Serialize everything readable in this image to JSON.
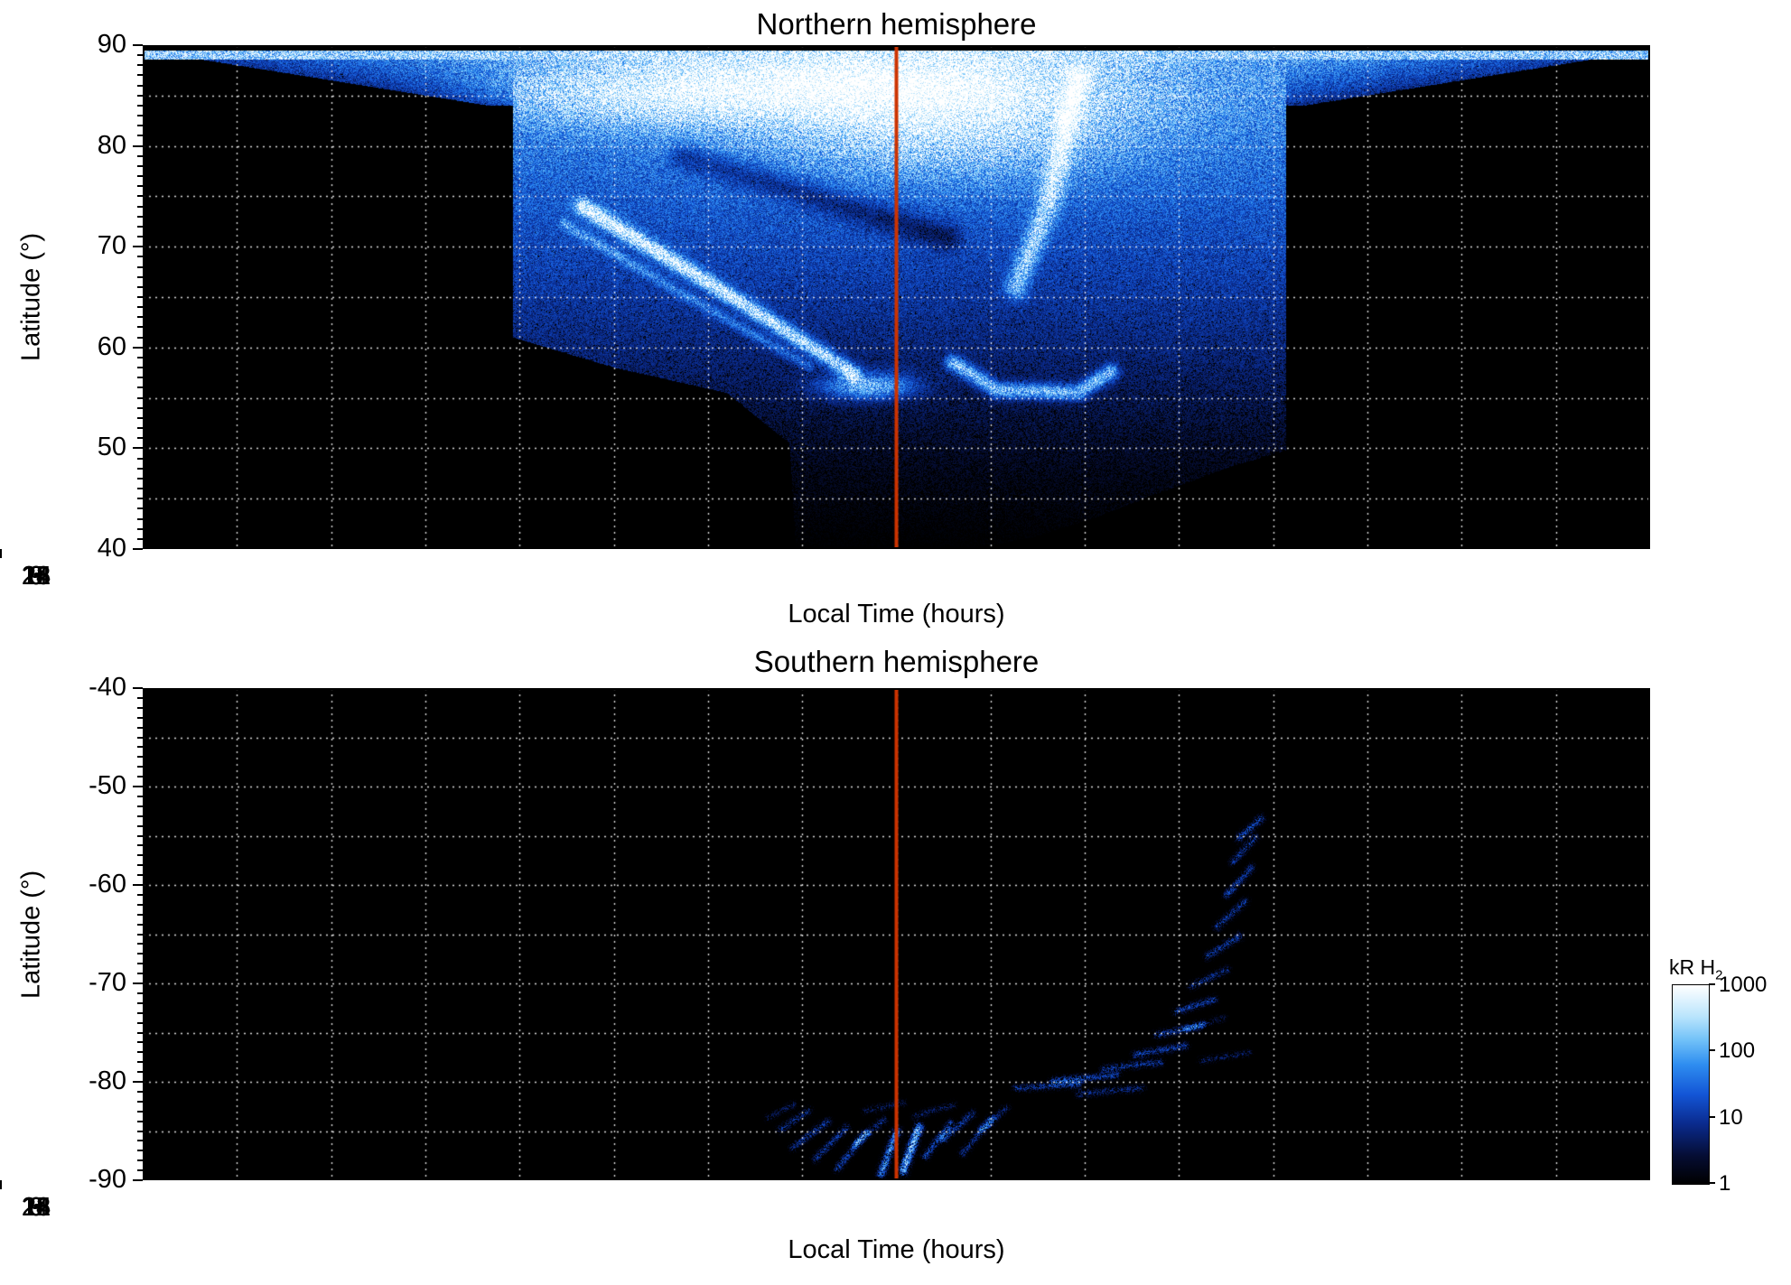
{
  "chart_data": [
    {
      "type": "heatmap",
      "title": "Northern hemisphere",
      "xlabel": "Local Time (hours)",
      "ylabel": "Latitude (°)",
      "xlim": [
        0,
        24
      ],
      "ylim": [
        40,
        90
      ],
      "xticks": [
        0,
        3,
        6,
        9,
        12,
        15,
        18,
        21,
        24
      ],
      "yticks": [
        90,
        80,
        70,
        60,
        50,
        40
      ],
      "grid": {
        "x_step": 1.5,
        "y_step": 5,
        "color": "#ffffff",
        "style": "dotted"
      },
      "annotations": [
        {
          "type": "vline",
          "x": 12,
          "color": "#cc3300",
          "width": 4
        }
      ],
      "units": "kR H2, log color scale 1-1000, black background = no emission",
      "intensity_model": {
        "seed": 7,
        "top_gap_lat": 89.5,
        "noise": {
          "mult_min": 0.62,
          "mult_range": 0.75,
          "dropout_v": 0.3,
          "dropout_k": 2.2
        },
        "ops": [
          {
            "op": "base",
            "t_min": 5.9,
            "t_max": 18.2,
            "bottom": [
              [
                5.9,
                61
              ],
              [
                7.5,
                58
              ],
              [
                9.3,
                55.5
              ],
              [
                10.3,
                50.5
              ],
              [
                10.4,
                40
              ],
              [
                13.2,
                40
              ],
              [
                14.2,
                41.2
              ],
              [
                15.2,
                43.2
              ],
              [
                16.2,
                45.6
              ],
              [
                17.2,
                47.9
              ],
              [
                18.2,
                49.8
              ]
            ],
            "lat0": 50,
            "v0": 0.14,
            "slope": 0.013,
            "vmax": 0.68
          },
          {
            "op": "wash",
            "lat_min": 84,
            "lat_max": 89.5,
            "lat_ref": 90,
            "center": 12,
            "half_at_min": 6.5,
            "half_at_max": 12.5,
            "v0": 0.6,
            "v_slope": 0.033,
            "edge_drop": 0.55
          },
          {
            "op": "band",
            "lat_min": 88.55,
            "lat_max": 89.5,
            "t_min": 0,
            "t_max": 24,
            "v": 0.78
          },
          {
            "op": "blob",
            "t": 12.8,
            "lat": 83,
            "st": 2.1,
            "sl": 4.2,
            "amp": 0.42,
            "masked": true
          },
          {
            "op": "blob",
            "t": 10.9,
            "lat": 86,
            "st": 2.6,
            "sl": 2.4,
            "amp": 0.32,
            "masked": true
          },
          {
            "op": "blob",
            "t": 8.2,
            "lat": 85,
            "st": 1.7,
            "sl": 2.2,
            "amp": 0.28,
            "masked": true
          },
          {
            "op": "arc",
            "pts": [
              [
                14.9,
                87
              ],
              [
                14.4,
                74
              ],
              [
                13.9,
                66
              ]
            ],
            "sigma": 0.8,
            "amp": 0.4,
            "masked": true
          },
          {
            "op": "arc",
            "pts": [
              [
                7.0,
                74
              ],
              [
                9.0,
                66.5
              ],
              [
                11.3,
                57.5
              ]
            ],
            "sigma": 0.55,
            "amp": 0.6,
            "masked": true
          },
          {
            "op": "arc",
            "pts": [
              [
                6.7,
                72.3
              ],
              [
                8.6,
                65.3
              ],
              [
                10.6,
                58.2
              ]
            ],
            "sigma": 0.38,
            "amp": 0.22,
            "masked": true
          },
          {
            "op": "blob",
            "t": 11.55,
            "lat": 56.2,
            "st": 0.5,
            "sl": 0.9,
            "amp": 0.5,
            "masked": true
          },
          {
            "op": "arc",
            "pts": [
              [
                12.9,
                58.5
              ],
              [
                13.6,
                55.8
              ],
              [
                14.9,
                55.6
              ],
              [
                15.4,
                57.6
              ]
            ],
            "sigma": 0.55,
            "amp": 0.5,
            "masked": true
          },
          {
            "op": "arc",
            "pts": [
              [
                8.6,
                79
              ],
              [
                12.8,
                71
              ]
            ],
            "sigma": 1.0,
            "amp": -0.2,
            "masked": true
          }
        ]
      }
    },
    {
      "type": "heatmap",
      "title": "Southern hemisphere",
      "xlabel": "Local Time (hours)",
      "ylabel": "Latitude (°)",
      "xlim": [
        0,
        24
      ],
      "ylim": [
        -90,
        -40
      ],
      "xticks": [
        0,
        3,
        6,
        9,
        12,
        15,
        18,
        21,
        24
      ],
      "yticks": [
        -40,
        -50,
        -60,
        -70,
        -80,
        -90
      ],
      "grid": {
        "x_step": 1.5,
        "y_step": 5,
        "color": "#ffffff",
        "style": "dotted"
      },
      "annotations": [
        {
          "type": "vline",
          "x": 12,
          "color": "#cc3300",
          "width": 4
        }
      ],
      "units": "kR H2, log color scale 1-1000, black background = no emission",
      "intensity_model": {
        "seed": 13,
        "top_gap_lat": null,
        "noise": {
          "mult_min": 0.45,
          "mult_range": 1.1,
          "dropout_v": 0.5,
          "dropout_k": 1.6
        },
        "ops": [
          {
            "op": "arc",
            "pts": [
              [
                10.15,
                -84.8
              ],
              [
                10.6,
                -82.9
              ]
            ],
            "sigma": 0.3,
            "amp": 0.28
          },
          {
            "op": "arc",
            "pts": [
              [
                10.35,
                -86.6
              ],
              [
                10.9,
                -84.0
              ]
            ],
            "sigma": 0.3,
            "amp": 0.3
          },
          {
            "op": "arc",
            "pts": [
              [
                10.7,
                -87.8
              ],
              [
                11.2,
                -84.6
              ]
            ],
            "sigma": 0.3,
            "amp": 0.3
          },
          {
            "op": "arc",
            "pts": [
              [
                11.05,
                -88.8
              ],
              [
                11.5,
                -85.2
              ]
            ],
            "sigma": 0.3,
            "amp": 0.34
          },
          {
            "op": "arc",
            "pts": [
              [
                11.35,
                -86.2
              ],
              [
                11.8,
                -83.8
              ]
            ],
            "sigma": 0.3,
            "amp": 0.26
          },
          {
            "op": "arc",
            "pts": [
              [
                11.75,
                -89.3
              ],
              [
                12.0,
                -85.0
              ]
            ],
            "sigma": 0.34,
            "amp": 0.5
          },
          {
            "op": "arc",
            "pts": [
              [
                12.1,
                -89.0
              ],
              [
                12.35,
                -84.6
              ]
            ],
            "sigma": 0.36,
            "amp": 0.62
          },
          {
            "op": "arc",
            "pts": [
              [
                12.45,
                -87.6
              ],
              [
                12.85,
                -84.2
              ]
            ],
            "sigma": 0.3,
            "amp": 0.34
          },
          {
            "op": "arc",
            "pts": [
              [
                12.75,
                -85.8
              ],
              [
                13.2,
                -83.2
              ]
            ],
            "sigma": 0.3,
            "amp": 0.3
          },
          {
            "op": "arc",
            "pts": [
              [
                13.05,
                -87.2
              ],
              [
                13.5,
                -83.8
              ]
            ],
            "sigma": 0.3,
            "amp": 0.28
          },
          {
            "op": "arc",
            "pts": [
              [
                13.35,
                -84.8
              ],
              [
                13.75,
                -82.6
              ]
            ],
            "sigma": 0.3,
            "amp": 0.24
          },
          {
            "op": "arc",
            "pts": [
              [
                9.95,
                -83.6
              ],
              [
                10.35,
                -82.3
              ]
            ],
            "sigma": 0.28,
            "amp": 0.2
          },
          {
            "op": "arc",
            "pts": [
              [
                12.3,
                -83.4
              ],
              [
                12.9,
                -82.3
              ]
            ],
            "sigma": 0.28,
            "amp": 0.22
          },
          {
            "op": "arc",
            "pts": [
              [
                11.5,
                -82.9
              ],
              [
                12.1,
                -82.1
              ]
            ],
            "sigma": 0.28,
            "amp": 0.2
          },
          {
            "op": "arc",
            "pts": [
              [
                13.9,
                -80.6
              ],
              [
                14.9,
                -80.2
              ]
            ],
            "sigma": 0.3,
            "amp": 0.3
          },
          {
            "op": "arc",
            "pts": [
              [
                14.5,
                -79.8
              ],
              [
                15.5,
                -79.3
              ]
            ],
            "sigma": 0.3,
            "amp": 0.32
          },
          {
            "op": "arc",
            "pts": [
              [
                14.9,
                -81.2
              ],
              [
                15.9,
                -80.6
              ]
            ],
            "sigma": 0.3,
            "amp": 0.26
          },
          {
            "op": "arc",
            "pts": [
              [
                15.3,
                -78.6
              ],
              [
                16.2,
                -78.0
              ]
            ],
            "sigma": 0.3,
            "amp": 0.3
          },
          {
            "op": "arc",
            "pts": [
              [
                15.8,
                -77.2
              ],
              [
                16.6,
                -76.3
              ]
            ],
            "sigma": 0.3,
            "amp": 0.32
          },
          {
            "op": "arc",
            "pts": [
              [
                16.15,
                -75.2
              ],
              [
                16.85,
                -74.2
              ]
            ],
            "sigma": 0.3,
            "amp": 0.3
          },
          {
            "op": "arc",
            "pts": [
              [
                16.45,
                -72.8
              ],
              [
                17.05,
                -71.6
              ]
            ],
            "sigma": 0.3,
            "amp": 0.32
          },
          {
            "op": "arc",
            "pts": [
              [
                16.7,
                -70.2
              ],
              [
                17.25,
                -68.6
              ]
            ],
            "sigma": 0.3,
            "amp": 0.3
          },
          {
            "op": "arc",
            "pts": [
              [
                16.95,
                -67.2
              ],
              [
                17.45,
                -65.2
              ]
            ],
            "sigma": 0.3,
            "amp": 0.32
          },
          {
            "op": "arc",
            "pts": [
              [
                17.1,
                -64.2
              ],
              [
                17.55,
                -61.6
              ]
            ],
            "sigma": 0.3,
            "amp": 0.3
          },
          {
            "op": "arc",
            "pts": [
              [
                17.25,
                -61.0
              ],
              [
                17.65,
                -58.2
              ]
            ],
            "sigma": 0.3,
            "amp": 0.32
          },
          {
            "op": "arc",
            "pts": [
              [
                17.35,
                -57.6
              ],
              [
                17.7,
                -55.2
              ]
            ],
            "sigma": 0.3,
            "amp": 0.3
          },
          {
            "op": "arc",
            "pts": [
              [
                17.45,
                -55.2
              ],
              [
                17.8,
                -53.2
              ]
            ],
            "sigma": 0.32,
            "amp": 0.34
          },
          {
            "op": "arc",
            "pts": [
              [
                16.6,
                -74.6
              ],
              [
                17.2,
                -73.5
              ]
            ],
            "sigma": 0.26,
            "amp": 0.2
          },
          {
            "op": "arc",
            "pts": [
              [
                16.85,
                -77.8
              ],
              [
                17.6,
                -77.0
              ]
            ],
            "sigma": 0.26,
            "amp": 0.22
          }
        ]
      }
    }
  ],
  "colorbar": {
    "label": "kR H",
    "label_sub": "2",
    "scale": "log",
    "min": 1,
    "max": 1000,
    "tick_labels": [
      "1000",
      "100",
      "10",
      "1"
    ]
  },
  "colormap": {
    "stops": [
      [
        0.0,
        "#000000"
      ],
      [
        0.14,
        "#050d33"
      ],
      [
        0.3,
        "#0a2a8c"
      ],
      [
        0.45,
        "#1355d6"
      ],
      [
        0.6,
        "#2e8df0"
      ],
      [
        0.72,
        "#6fc0f8"
      ],
      [
        0.84,
        "#b8e4fc"
      ],
      [
        1.0,
        "#ffffff"
      ]
    ]
  }
}
